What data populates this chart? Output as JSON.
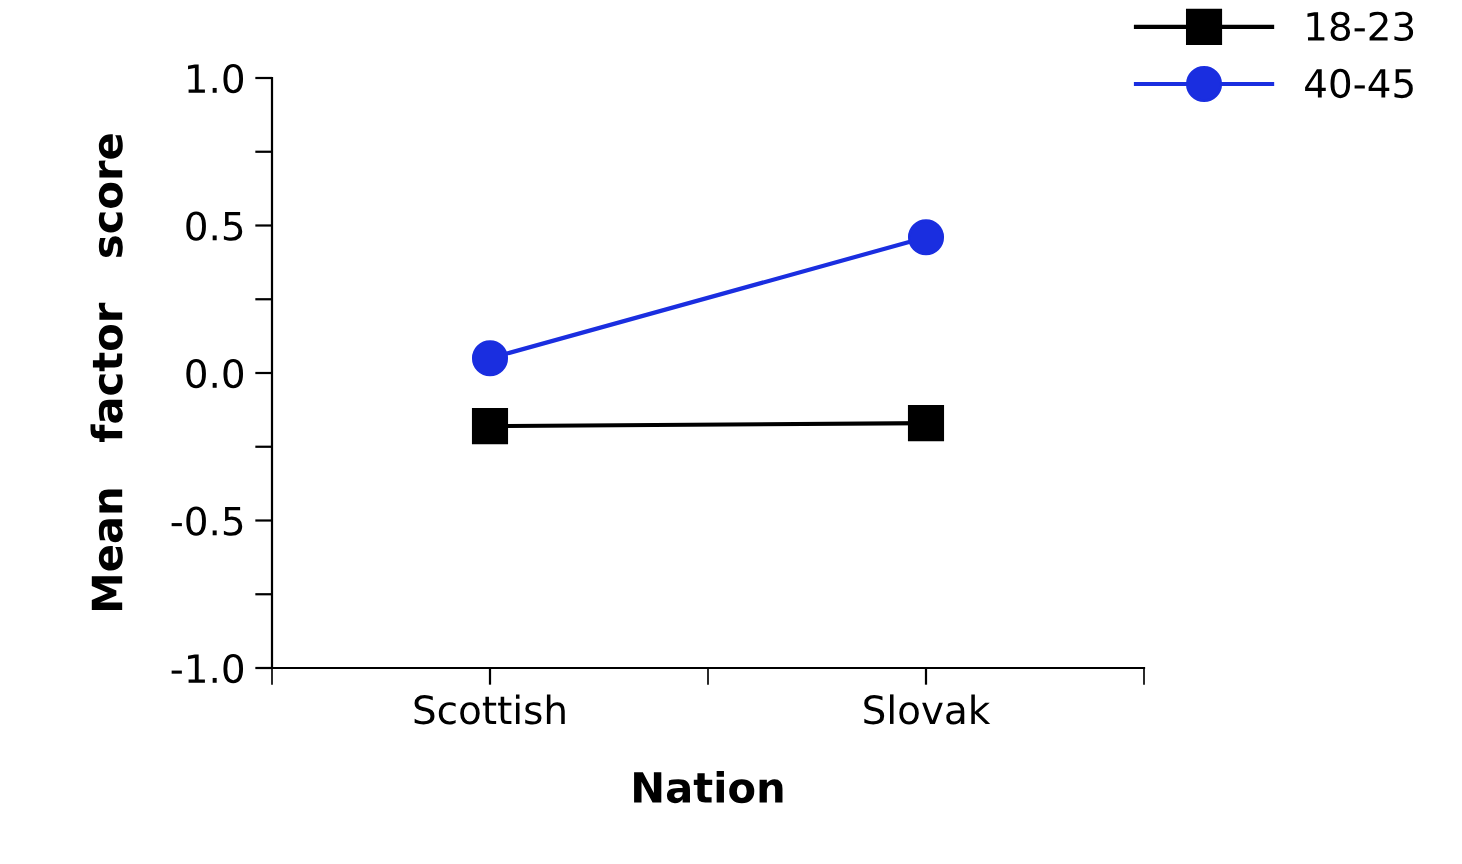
{
  "chart_data": {
    "type": "line",
    "xlabel": "Nation",
    "ylabel": "Mean   factor   score",
    "categories": [
      "Scottish",
      "Slovak"
    ],
    "series": [
      {
        "name": "18-23",
        "color": "#000000",
        "values": [
          -0.18,
          -0.17
        ],
        "marker": "square"
      },
      {
        "name": "40-45",
        "color": "#1a2ee0",
        "values": [
          0.05,
          0.46
        ],
        "marker": "circle"
      }
    ],
    "ylim": [
      -1.0,
      1.0
    ],
    "yticks": [
      {
        "value": -1.0,
        "label": "-1.0"
      },
      {
        "value": -0.75,
        "label": null
      },
      {
        "value": -0.5,
        "label": "-0.5"
      },
      {
        "value": -0.25,
        "label": null
      },
      {
        "value": 0.0,
        "label": "0.0"
      },
      {
        "value": 0.25,
        "label": null
      },
      {
        "value": 0.5,
        "label": "0.5"
      },
      {
        "value": 0.75,
        "label": null
      },
      {
        "value": 1.0,
        "label": "1.0"
      }
    ],
    "grid": false,
    "legend": "top right",
    "line_style": "solid"
  }
}
